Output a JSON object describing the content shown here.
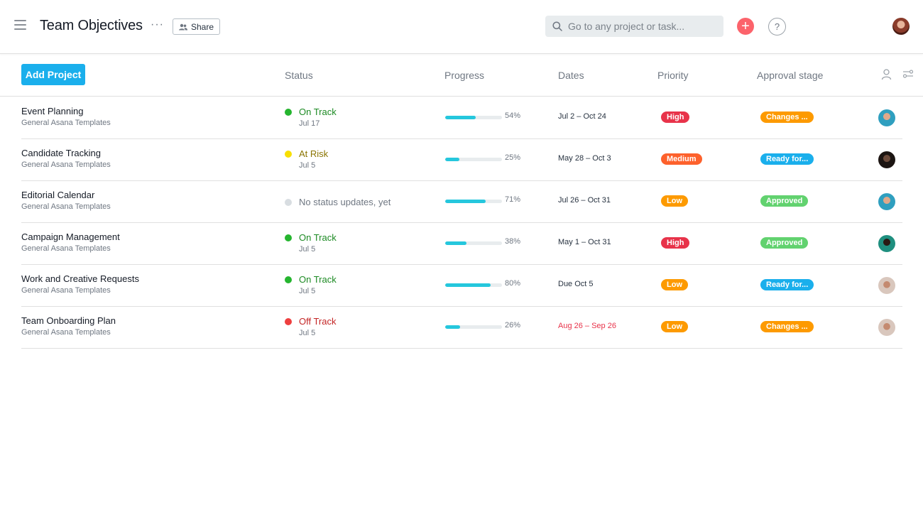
{
  "header": {
    "title": "Team Objectives",
    "more_icon": "more-dots-icon",
    "share_label": "Share",
    "search_placeholder": "Go to any project or task...",
    "add_glyph": "+",
    "help_glyph": "?"
  },
  "columns": {
    "add_project_label": "Add Project",
    "status": "Status",
    "progress": "Progress",
    "dates": "Dates",
    "priority": "Priority",
    "approval": "Approval stage"
  },
  "colors": {
    "accent_blue": "#1aafec",
    "on_track": "#25b52f",
    "at_risk": "#f8df00",
    "off_track": "#ee3f3f",
    "no_status": "#d8dde1",
    "progress_fill": "#25c7dd",
    "priority_high": "#e8334a",
    "priority_medium": "#fd612c",
    "priority_low": "#fd9a00",
    "approval_changes": "#fd9a00",
    "approval_ready": "#1aafec",
    "approval_approved": "#62d26f"
  },
  "rows": [
    {
      "name": "Event Planning",
      "team": "General Asana Templates",
      "status": "On Track",
      "status_kind": "on_track",
      "status_date": "Jul 17",
      "progress": 0.54,
      "progress_label": "54%",
      "dates": "Jul 2 – Oct 24",
      "dates_overdue": false,
      "priority": "High",
      "priority_kind": "high",
      "approval": "Changes ...",
      "approval_kind": "changes",
      "avatar": "avatar-teal"
    },
    {
      "name": "Candidate Tracking",
      "team": "General Asana Templates",
      "status": "At Risk",
      "status_kind": "at_risk",
      "status_date": "Jul 5",
      "progress": 0.25,
      "progress_label": "25%",
      "dates": "May 28 – Oct 3",
      "dates_overdue": false,
      "priority": "Medium",
      "priority_kind": "medium",
      "approval": "Ready for...",
      "approval_kind": "ready",
      "avatar": "avatar-dark"
    },
    {
      "name": "Editorial Calendar",
      "team": "General Asana Templates",
      "status": "No status updates, yet",
      "status_kind": "none",
      "status_date": "",
      "progress": 0.71,
      "progress_label": "71%",
      "dates": "Jul 26 – Oct 31",
      "dates_overdue": false,
      "priority": "Low",
      "priority_kind": "low",
      "approval": "Approved",
      "approval_kind": "approved",
      "avatar": "avatar-teal"
    },
    {
      "name": "Campaign Management",
      "team": "General Asana Templates",
      "status": "On Track",
      "status_kind": "on_track",
      "status_date": "Jul 5",
      "progress": 0.38,
      "progress_label": "38%",
      "dates": "May 1 – Oct 31",
      "dates_overdue": false,
      "priority": "High",
      "priority_kind": "high",
      "approval": "Approved",
      "approval_kind": "approved",
      "avatar": "avatar-green"
    },
    {
      "name": "Work and Creative Requests",
      "team": "General Asana Templates",
      "status": "On Track",
      "status_kind": "on_track",
      "status_date": "Jul 5",
      "progress": 0.8,
      "progress_label": "80%",
      "dates": "Due Oct 5",
      "dates_overdue": false,
      "priority": "Low",
      "priority_kind": "low",
      "approval": "Ready for...",
      "approval_kind": "ready",
      "avatar": "avatar-light"
    },
    {
      "name": "Team Onboarding Plan",
      "team": "General Asana Templates",
      "status": "Off Track",
      "status_kind": "off_track",
      "status_date": "Jul 5",
      "progress": 0.26,
      "progress_label": "26%",
      "dates": "Aug 26 – Sep 26",
      "dates_overdue": true,
      "priority": "Low",
      "priority_kind": "low",
      "approval": "Changes ...",
      "approval_kind": "changes",
      "avatar": "avatar-light"
    }
  ]
}
